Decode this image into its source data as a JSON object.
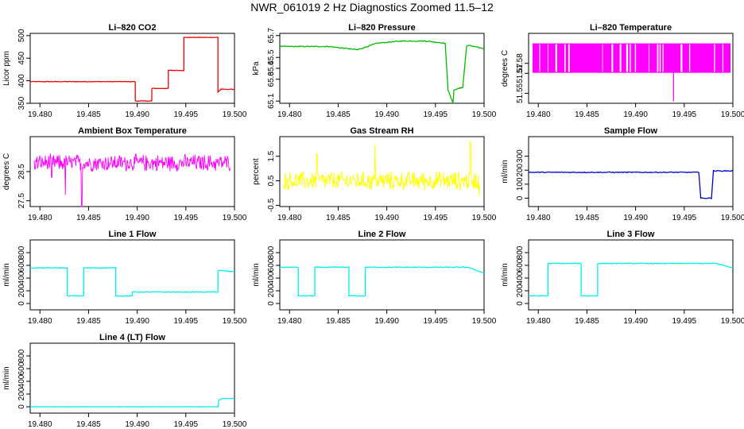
{
  "figure_title": "NWR_061019  2 Hz Diagnostics Zoomed 11.5–12",
  "chart_data": [
    {
      "type": "line",
      "title": "Li–820 CO2",
      "ylabel": "Licor ppm",
      "color": "#ee0000",
      "xlim": [
        19.479,
        19.5
      ],
      "ylim": [
        350,
        505
      ],
      "xticks": [
        19.48,
        19.485,
        19.49,
        19.495,
        19.5
      ],
      "xtick_labels": [
        "19.480",
        "19.485",
        "19.490",
        "19.495",
        "19.500"
      ],
      "yticks": [
        350,
        400,
        450,
        500
      ],
      "ytick_labels": [
        "350",
        "400",
        "450",
        "500"
      ],
      "noise": 0.6,
      "x": [
        19.479,
        19.4898,
        19.4898,
        19.4915,
        19.4915,
        19.4932,
        19.4932,
        19.4948,
        19.4948,
        19.4983,
        19.4983,
        19.4986,
        19.5
      ],
      "y": [
        398,
        398,
        355,
        355,
        383,
        383,
        423,
        423,
        496,
        496,
        375,
        381,
        381
      ]
    },
    {
      "type": "line",
      "title": "Li–820 Pressure",
      "ylabel": "kPa",
      "color": "#00bb00",
      "xlim": [
        19.479,
        19.5
      ],
      "ylim": [
        65.08,
        65.72
      ],
      "xticks": [
        19.48,
        19.485,
        19.49,
        19.495,
        19.5
      ],
      "xtick_labels": [
        "19.480",
        "19.485",
        "19.490",
        "19.495",
        "19.500"
      ],
      "yticks": [
        65.1,
        65.3,
        65.4,
        65.5,
        65.7
      ],
      "ytick_labels": [
        "65.1",
        "65.3",
        "65.4",
        "65.5",
        "65.7"
      ],
      "noise": 0.004,
      "x": [
        19.479,
        19.481,
        19.484,
        19.487,
        19.489,
        19.4915,
        19.494,
        19.496,
        19.4963,
        19.4968,
        19.4969,
        19.4975,
        19.4978,
        19.4982,
        19.4984,
        19.5
      ],
      "y": [
        65.6,
        65.6,
        65.6,
        65.57,
        65.63,
        65.65,
        65.65,
        65.63,
        65.2,
        65.08,
        65.2,
        65.22,
        65.22,
        65.6,
        65.61,
        65.58
      ]
    },
    {
      "type": "spikes",
      "title": "Li–820 Temperature",
      "ylabel": "degrees C",
      "color": "#ff00ff",
      "xlim": [
        19.479,
        19.5
      ],
      "ylim": [
        51.54,
        51.61
      ],
      "xticks": [
        19.48,
        19.485,
        19.49,
        19.495,
        19.5
      ],
      "xtick_labels": [
        "19.480",
        "19.485",
        "19.490",
        "19.495",
        "19.500"
      ],
      "yticks": [
        51.55,
        51.57,
        51.58
      ],
      "ytick_labels": [
        "51.55",
        "51.57",
        "51.58"
      ],
      "low": 51.571,
      "high": 51.6,
      "dip_x": 19.4939,
      "dip_y": 51.542
    },
    {
      "type": "noise",
      "title": "Ambient Box Temperature",
      "ylabel": "degrees C",
      "color": "#ff00ff",
      "xlim": [
        19.479,
        19.5
      ],
      "ylim": [
        27.3,
        29.7
      ],
      "xticks": [
        19.48,
        19.485,
        19.49,
        19.495,
        19.5
      ],
      "xtick_labels": [
        "19.480",
        "19.485",
        "19.490",
        "19.495",
        "19.500"
      ],
      "yticks": [
        27.5,
        28.5
      ],
      "ytick_labels": [
        "27.5",
        "28.5"
      ],
      "center": 28.8,
      "amp": 0.3,
      "dips": [
        [
          19.4793,
          27.6
        ],
        [
          19.4812,
          28.3
        ],
        [
          19.4826,
          27.7
        ],
        [
          19.4843,
          27.3
        ]
      ]
    },
    {
      "type": "noise",
      "title": "Gas Stream RH",
      "ylabel": "percent",
      "color": "#ffff00",
      "xlim": [
        19.479,
        19.5
      ],
      "ylim": [
        -0.55,
        2.3
      ],
      "xticks": [
        19.48,
        19.485,
        19.49,
        19.495,
        19.5
      ],
      "xtick_labels": [
        "19.480",
        "19.485",
        "19.490",
        "19.495",
        "19.500"
      ],
      "yticks": [
        -0.5,
        0.5,
        1.5
      ],
      "ytick_labels": [
        "-0.5",
        "0.5",
        "1.5"
      ],
      "center": 0.5,
      "amp": 0.4,
      "dips": [
        [
          19.4888,
          2.0
        ],
        [
          19.4828,
          1.6
        ],
        [
          19.4986,
          2.1
        ],
        [
          19.4995,
          -0.1
        ]
      ]
    },
    {
      "type": "line",
      "title": "Sample Flow",
      "ylabel": "ml/min",
      "color": "#0000cc",
      "xlim": [
        19.479,
        19.5
      ],
      "ylim": [
        -60,
        440
      ],
      "xticks": [
        19.48,
        19.485,
        19.49,
        19.495,
        19.5
      ],
      "xtick_labels": [
        "19.480",
        "19.485",
        "19.490",
        "19.495",
        "19.500"
      ],
      "yticks": [
        0,
        100,
        200,
        300
      ],
      "ytick_labels": [
        "0",
        "100",
        "200",
        "300"
      ],
      "noise": 3,
      "x": [
        19.479,
        19.4965,
        19.4967,
        19.4978,
        19.498,
        19.5
      ],
      "y": [
        185,
        185,
        0,
        0,
        195,
        195
      ]
    },
    {
      "type": "line",
      "title": "Line 1 Flow",
      "ylabel": "ml/min",
      "color": "#00eeee",
      "xlim": [
        19.479,
        19.5
      ],
      "ylim": [
        -100,
        1000
      ],
      "xticks": [
        19.48,
        19.485,
        19.49,
        19.495,
        19.5
      ],
      "xtick_labels": [
        "19.480",
        "19.485",
        "19.490",
        "19.495",
        "19.500"
      ],
      "yticks": [
        0,
        200,
        400,
        600,
        800
      ],
      "ytick_labels": [
        "0",
        "200",
        "400",
        "600",
        "800"
      ],
      "noise": 6,
      "x": [
        19.479,
        19.4828,
        19.4828,
        19.4845,
        19.4845,
        19.4878,
        19.4878,
        19.4895,
        19.4895,
        19.4983,
        19.4983,
        19.5
      ],
      "y": [
        560,
        560,
        120,
        120,
        560,
        560,
        120,
        120,
        180,
        180,
        520,
        500
      ]
    },
    {
      "type": "line",
      "title": "Line 2 Flow",
      "ylabel": "ml/min",
      "color": "#00eeee",
      "xlim": [
        19.479,
        19.5
      ],
      "ylim": [
        -100,
        1000
      ],
      "xticks": [
        19.48,
        19.485,
        19.49,
        19.495,
        19.5
      ],
      "xtick_labels": [
        "19.480",
        "19.485",
        "19.490",
        "19.495",
        "19.500"
      ],
      "yticks": [
        0,
        200,
        400,
        600,
        800
      ],
      "ytick_labels": [
        "0",
        "200",
        "400",
        "600",
        "800"
      ],
      "noise": 6,
      "x": [
        19.479,
        19.4809,
        19.4809,
        19.4826,
        19.4826,
        19.4861,
        19.4861,
        19.4878,
        19.4878,
        19.4983,
        19.5
      ],
      "y": [
        570,
        570,
        120,
        120,
        570,
        570,
        120,
        120,
        570,
        570,
        480
      ]
    },
    {
      "type": "line",
      "title": "Line 3 Flow",
      "ylabel": "ml/min",
      "color": "#00eeee",
      "xlim": [
        19.479,
        19.5
      ],
      "ylim": [
        -100,
        1000
      ],
      "xticks": [
        19.48,
        19.485,
        19.49,
        19.495,
        19.5
      ],
      "xtick_labels": [
        "19.480",
        "19.485",
        "19.490",
        "19.495",
        "19.500"
      ],
      "yticks": [
        0,
        200,
        400,
        600,
        800
      ],
      "ytick_labels": [
        "0",
        "200",
        "400",
        "600",
        "800"
      ],
      "noise": 6,
      "x": [
        19.479,
        19.481,
        19.481,
        19.4844,
        19.4844,
        19.4861,
        19.4861,
        19.4983,
        19.5
      ],
      "y": [
        120,
        120,
        630,
        630,
        120,
        120,
        630,
        630,
        560
      ]
    },
    {
      "type": "line",
      "title": "Line 4 (LT) Flow",
      "ylabel": "ml/min",
      "color": "#00eeee",
      "xlim": [
        19.479,
        19.5
      ],
      "ylim": [
        -100,
        1000
      ],
      "xticks": [
        19.48,
        19.485,
        19.49,
        19.495,
        19.5
      ],
      "xtick_labels": [
        "19.480",
        "19.485",
        "19.490",
        "19.495",
        "19.500"
      ],
      "yticks": [
        0,
        200,
        400,
        600,
        800
      ],
      "ytick_labels": [
        "0",
        "200",
        "400",
        "600",
        "800"
      ],
      "noise": 1,
      "x": [
        19.479,
        19.4983,
        19.4984,
        19.4988,
        19.5
      ],
      "y": [
        0,
        0,
        110,
        130,
        130
      ]
    }
  ]
}
